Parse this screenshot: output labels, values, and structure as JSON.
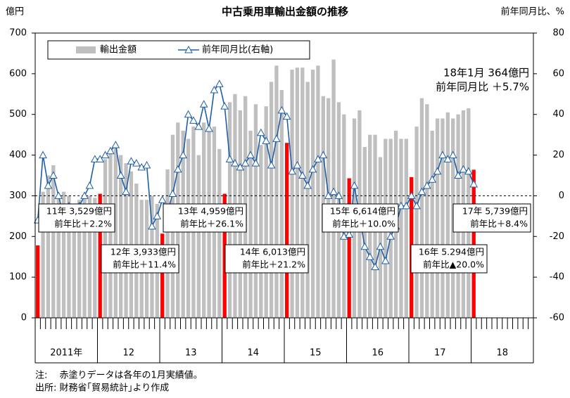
{
  "chart_data": {
    "type": "bar_line",
    "title": "中古乗用車輸出金額の推移",
    "y_axis_label": "億円",
    "y2_axis_label": "前年同月比、%",
    "ylim": [
      0,
      700
    ],
    "yticks": [
      0,
      100,
      200,
      300,
      400,
      500,
      600,
      700
    ],
    "y2lim": [
      -60,
      80
    ],
    "y2ticks": [
      -60,
      -40,
      -20,
      0,
      20,
      40,
      60,
      80
    ],
    "y2_reference_line": 0,
    "legend": "top-left",
    "categories": [
      null,
      null,
      null,
      null,
      null,
      null,
      null,
      null,
      null,
      null,
      null,
      null,
      null,
      null,
      null,
      null,
      null,
      null,
      null,
      null,
      null,
      null,
      null,
      null,
      null,
      null,
      null,
      null,
      null,
      null,
      null,
      null,
      null,
      null,
      null,
      null,
      null,
      null,
      null,
      null,
      null,
      null,
      null,
      null,
      null,
      null,
      null,
      null,
      null,
      null,
      null,
      null,
      null,
      null,
      null,
      null,
      null,
      null,
      null,
      null,
      null,
      null,
      null,
      null,
      null,
      null,
      null,
      null,
      null,
      null,
      null,
      null,
      null,
      null,
      null,
      null,
      null,
      null,
      null,
      null,
      null,
      null,
      null,
      null,
      null,
      null,
      null,
      null,
      null,
      null,
      null,
      null,
      null,
      null,
      null,
      null
    ],
    "x_groups": [
      {
        "label": "2011年",
        "size": 12
      },
      {
        "label": "12",
        "size": 12
      },
      {
        "label": "13",
        "size": 12
      },
      {
        "label": "14",
        "size": 12
      },
      {
        "label": "15",
        "size": 12
      },
      {
        "label": "16",
        "size": 12
      },
      {
        "label": "17",
        "size": 12
      },
      {
        "label": "18",
        "size": 12
      }
    ],
    "series": [
      {
        "name": "輸出金額",
        "type": "bar",
        "color": "#bfbfbf",
        "colors": [
          "#ff0000",
          "#bfbfbf",
          "#bfbfbf",
          "#bfbfbf",
          "#bfbfbf",
          "#bfbfbf",
          "#bfbfbf",
          "#bfbfbf",
          "#bfbfbf",
          "#bfbfbf",
          "#bfbfbf",
          "#bfbfbf",
          "#ff0000",
          "#bfbfbf",
          "#bfbfbf",
          "#bfbfbf",
          "#bfbfbf",
          "#bfbfbf",
          "#bfbfbf",
          "#bfbfbf",
          "#bfbfbf",
          "#bfbfbf",
          "#bfbfbf",
          "#bfbfbf",
          "#ff0000",
          "#bfbfbf",
          "#bfbfbf",
          "#bfbfbf",
          "#bfbfbf",
          "#bfbfbf",
          "#bfbfbf",
          "#bfbfbf",
          "#bfbfbf",
          "#bfbfbf",
          "#bfbfbf",
          "#bfbfbf",
          "#ff0000",
          "#bfbfbf",
          "#bfbfbf",
          "#bfbfbf",
          "#bfbfbf",
          "#bfbfbf",
          "#bfbfbf",
          "#bfbfbf",
          "#bfbfbf",
          "#bfbfbf",
          "#bfbfbf",
          "#bfbfbf",
          "#ff0000",
          "#bfbfbf",
          "#bfbfbf",
          "#bfbfbf",
          "#bfbfbf",
          "#bfbfbf",
          "#bfbfbf",
          "#bfbfbf",
          "#bfbfbf",
          "#bfbfbf",
          "#bfbfbf",
          "#bfbfbf",
          "#ff0000",
          "#bfbfbf",
          "#bfbfbf",
          "#bfbfbf",
          "#bfbfbf",
          "#bfbfbf",
          "#bfbfbf",
          "#bfbfbf",
          "#bfbfbf",
          "#bfbfbf",
          "#bfbfbf",
          "#bfbfbf",
          "#ff0000",
          "#bfbfbf",
          "#bfbfbf",
          "#bfbfbf",
          "#bfbfbf",
          "#bfbfbf",
          "#bfbfbf",
          "#bfbfbf",
          "#bfbfbf",
          "#bfbfbf",
          "#bfbfbf",
          "#bfbfbf",
          "#ff0000",
          "#bfbfbf",
          "#bfbfbf",
          "#bfbfbf",
          "#bfbfbf",
          "#bfbfbf",
          "#bfbfbf",
          "#bfbfbf",
          "#bfbfbf",
          "#bfbfbf",
          "#bfbfbf",
          "#bfbfbf"
        ],
        "values": [
          178,
          310,
          350,
          375,
          300,
          310,
          300,
          280,
          290,
          300,
          300,
          295,
          305,
          390,
          410,
          420,
          400,
          380,
          360,
          330,
          290,
          290,
          300,
          280,
          207,
          365,
          450,
          480,
          460,
          440,
          470,
          400,
          480,
          460,
          470,
          415,
          305,
          530,
          550,
          510,
          545,
          460,
          525,
          425,
          520,
          580,
          620,
          560,
          430,
          610,
          615,
          615,
          580,
          610,
          620,
          545,
          540,
          635,
          530,
          500,
          343,
          490,
          510,
          420,
          450,
          450,
          395,
          440,
          440,
          460,
          440,
          440,
          346,
          470,
          540,
          525,
          460,
          490,
          490,
          505,
          490,
          500,
          510,
          515,
          364,
          null,
          null,
          null,
          null,
          null,
          null,
          null,
          null,
          null,
          null,
          null
        ]
      },
      {
        "name": "前年同月比(右軸)",
        "type": "line",
        "axis": "y2",
        "color": "#1f5fa8",
        "values": [
          -12,
          20,
          5,
          10,
          0,
          -10,
          -5,
          -8,
          -5,
          0,
          5,
          18,
          18,
          20,
          22,
          25,
          10,
          2,
          17,
          16,
          14,
          15,
          -15,
          -10,
          -2,
          -8,
          1,
          13,
          20,
          40,
          37,
          34,
          45,
          33,
          52,
          55,
          44,
          18,
          16,
          14,
          16,
          20,
          16,
          31,
          27,
          15,
          28,
          42,
          39,
          12,
          15,
          10,
          5,
          13,
          18,
          20,
          0,
          2,
          0,
          -20,
          -19,
          5,
          -10,
          -25,
          -30,
          -35,
          -25,
          -32,
          -20,
          -15,
          -5,
          -5,
          0,
          -5,
          2,
          5,
          8,
          12,
          20,
          18,
          20,
          10,
          13,
          12,
          5.7,
          null,
          null,
          null,
          null,
          null,
          null,
          null,
          null,
          null,
          null,
          null
        ]
      }
    ],
    "annotations": [
      {
        "lines": [
          "11年 3,529億円",
          "前年比＋2.2%"
        ]
      },
      {
        "lines": [
          "12年 3,933億円",
          "前年比＋11.4%"
        ]
      },
      {
        "lines": [
          "13年 4,959億円",
          "前年比＋26.1%"
        ]
      },
      {
        "lines": [
          "14年 6,013億円",
          "前年比＋21.2%"
        ]
      },
      {
        "lines": [
          "15年 6,614億円",
          "前年比＋10.0%"
        ]
      },
      {
        "lines": [
          "16年 5.294億円",
          "前年比▲20.0%"
        ]
      },
      {
        "lines": [
          "17年 5,739億円",
          "前年比＋8.4%"
        ]
      },
      {
        "lines": [
          "18年1月 364億円",
          "前年同月比 ＋5.7%"
        ]
      }
    ],
    "notes": [
      "注:　 赤塗りデータは各年の1月実績値。",
      "出所:  財務省｢貿易統計｣より作成"
    ]
  }
}
